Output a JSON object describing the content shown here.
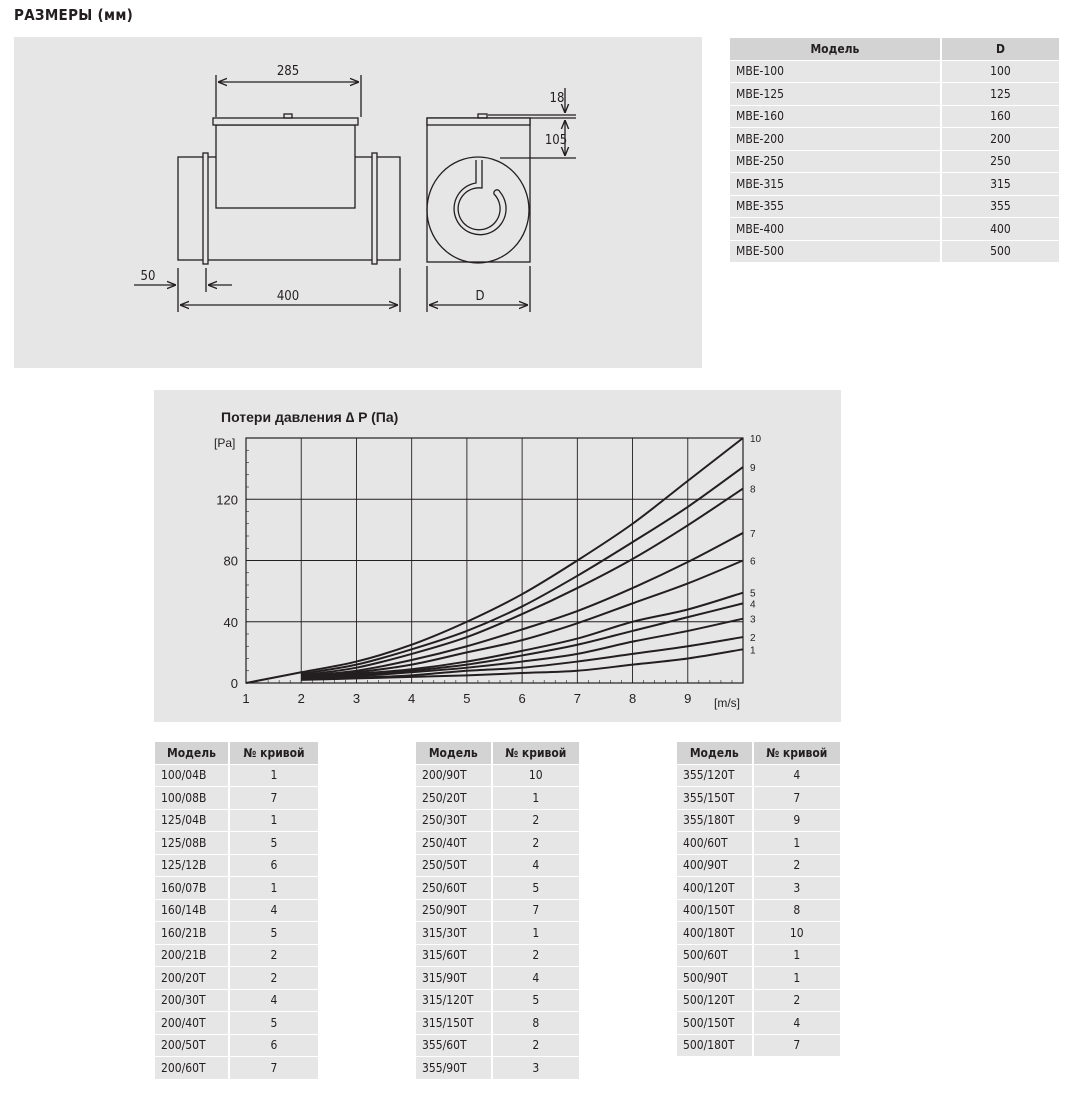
{
  "title": "РАЗМЕРЫ (мм)",
  "drawing": {
    "dim_top_width": "285",
    "dim_length": "400",
    "dim_flange": "50",
    "dim_lid": "18",
    "dim_height": "105",
    "dim_diameter": "D"
  },
  "dims_table": {
    "headers": [
      "Модель",
      "D"
    ],
    "rows": [
      [
        "MBE-100",
        "100"
      ],
      [
        "MBE-125",
        "125"
      ],
      [
        "MBE-160",
        "160"
      ],
      [
        "MBE-200",
        "200"
      ],
      [
        "MBE-250",
        "250"
      ],
      [
        "MBE-315",
        "315"
      ],
      [
        "MBE-355",
        "355"
      ],
      [
        "MBE-400",
        "400"
      ],
      [
        "MBE-500",
        "500"
      ]
    ]
  },
  "chart_data": {
    "type": "line",
    "title": "Потери давления ∆ P  (Па)",
    "ylabel": "[Pa]",
    "xlabel": "[m/s]",
    "xlim": [
      1,
      10
    ],
    "ylim": [
      0,
      160
    ],
    "xticks": [
      "1",
      "2",
      "3",
      "4",
      "5",
      "6",
      "7",
      "8",
      "9"
    ],
    "yticks": [
      "0",
      "40",
      "80",
      "120"
    ],
    "grid": true,
    "series": [
      {
        "name": "1",
        "points": [
          [
            2,
            2
          ],
          [
            3,
            3
          ],
          [
            4,
            4
          ],
          [
            5,
            5
          ],
          [
            6,
            6.5
          ],
          [
            7,
            8
          ],
          [
            8,
            12
          ],
          [
            9,
            16
          ],
          [
            10,
            22
          ]
        ]
      },
      {
        "name": "2",
        "points": [
          [
            2,
            2.5
          ],
          [
            3,
            3.5
          ],
          [
            4,
            5
          ],
          [
            5,
            8
          ],
          [
            6,
            10
          ],
          [
            7,
            14
          ],
          [
            8,
            19
          ],
          [
            9,
            24
          ],
          [
            10,
            30
          ]
        ]
      },
      {
        "name": "3",
        "points": [
          [
            2,
            3
          ],
          [
            3,
            4.5
          ],
          [
            4,
            7
          ],
          [
            5,
            10
          ],
          [
            6,
            14
          ],
          [
            7,
            19
          ],
          [
            8,
            27
          ],
          [
            9,
            34
          ],
          [
            10,
            42
          ]
        ]
      },
      {
        "name": "4",
        "points": [
          [
            2,
            3
          ],
          [
            3,
            5
          ],
          [
            4,
            8
          ],
          [
            5,
            12
          ],
          [
            6,
            18
          ],
          [
            7,
            25
          ],
          [
            8,
            34
          ],
          [
            9,
            43
          ],
          [
            10,
            52
          ]
        ]
      },
      {
        "name": "5",
        "points": [
          [
            2,
            3.5
          ],
          [
            3,
            6
          ],
          [
            4,
            9
          ],
          [
            5,
            14
          ],
          [
            6,
            21
          ],
          [
            7,
            29
          ],
          [
            8,
            40
          ],
          [
            9,
            48
          ],
          [
            10,
            59
          ]
        ]
      },
      {
        "name": "6",
        "points": [
          [
            2,
            4
          ],
          [
            3,
            7
          ],
          [
            4,
            12
          ],
          [
            5,
            20
          ],
          [
            6,
            28
          ],
          [
            7,
            39
          ],
          [
            8,
            52
          ],
          [
            9,
            65
          ],
          [
            10,
            80
          ]
        ]
      },
      {
        "name": "7",
        "points": [
          [
            2,
            4.5
          ],
          [
            3,
            8
          ],
          [
            4,
            15
          ],
          [
            5,
            24
          ],
          [
            6,
            35
          ],
          [
            7,
            47
          ],
          [
            8,
            62
          ],
          [
            9,
            79
          ],
          [
            10,
            98
          ]
        ]
      },
      {
        "name": "8",
        "points": [
          [
            2,
            5
          ],
          [
            3,
            10
          ],
          [
            4,
            19
          ],
          [
            5,
            30
          ],
          [
            6,
            45
          ],
          [
            7,
            62
          ],
          [
            8,
            81
          ],
          [
            9,
            103
          ],
          [
            10,
            127
          ]
        ]
      },
      {
        "name": "9",
        "points": [
          [
            2,
            6
          ],
          [
            3,
            12
          ],
          [
            4,
            22
          ],
          [
            5,
            34
          ],
          [
            6,
            50
          ],
          [
            7,
            70
          ],
          [
            8,
            92
          ],
          [
            9,
            115
          ],
          [
            10,
            141
          ]
        ]
      },
      {
        "name": "10",
        "points": [
          [
            1,
            0
          ],
          [
            2,
            7
          ],
          [
            3,
            14
          ],
          [
            4,
            25
          ],
          [
            5,
            40
          ],
          [
            6,
            58
          ],
          [
            7,
            80
          ],
          [
            8,
            104
          ],
          [
            9,
            132
          ],
          [
            10,
            160
          ]
        ]
      }
    ]
  },
  "curve_tables": [
    {
      "headers": [
        "Модель",
        "№ кривой"
      ],
      "rows": [
        [
          "100/04B",
          "1"
        ],
        [
          "100/08B",
          "7"
        ],
        [
          "125/04B",
          "1"
        ],
        [
          "125/08B",
          "5"
        ],
        [
          "125/12B",
          "6"
        ],
        [
          "160/07B",
          "1"
        ],
        [
          "160/14B",
          "4"
        ],
        [
          "160/21B",
          "5"
        ],
        [
          "200/21B",
          "2"
        ],
        [
          "200/20T",
          "2"
        ],
        [
          "200/30T",
          "4"
        ],
        [
          "200/40T",
          "5"
        ],
        [
          "200/50T",
          "6"
        ],
        [
          "200/60T",
          "7"
        ]
      ]
    },
    {
      "headers": [
        "Модель",
        "№ кривой"
      ],
      "rows": [
        [
          "200/90T",
          "10"
        ],
        [
          "250/20T",
          "1"
        ],
        [
          "250/30T",
          "2"
        ],
        [
          "250/40T",
          "2"
        ],
        [
          "250/50T",
          "4"
        ],
        [
          "250/60T",
          "5"
        ],
        [
          "250/90T",
          "7"
        ],
        [
          "315/30T",
          "1"
        ],
        [
          "315/60T",
          "2"
        ],
        [
          "315/90T",
          "4"
        ],
        [
          "315/120T",
          "5"
        ],
        [
          "315/150T",
          "8"
        ],
        [
          "355/60T",
          "2"
        ],
        [
          "355/90T",
          "3"
        ]
      ]
    },
    {
      "headers": [
        "Модель",
        "№ кривой"
      ],
      "rows": [
        [
          "355/120T",
          "4"
        ],
        [
          "355/150T",
          "7"
        ],
        [
          "355/180T",
          "9"
        ],
        [
          "400/60T",
          "1"
        ],
        [
          "400/90T",
          "2"
        ],
        [
          "400/120T",
          "3"
        ],
        [
          "400/150T",
          "8"
        ],
        [
          "400/180T",
          "10"
        ],
        [
          "500/60T",
          "1"
        ],
        [
          "500/90T",
          "1"
        ],
        [
          "500/120T",
          "2"
        ],
        [
          "500/150T",
          "4"
        ],
        [
          "500/180T",
          "7"
        ]
      ]
    }
  ]
}
